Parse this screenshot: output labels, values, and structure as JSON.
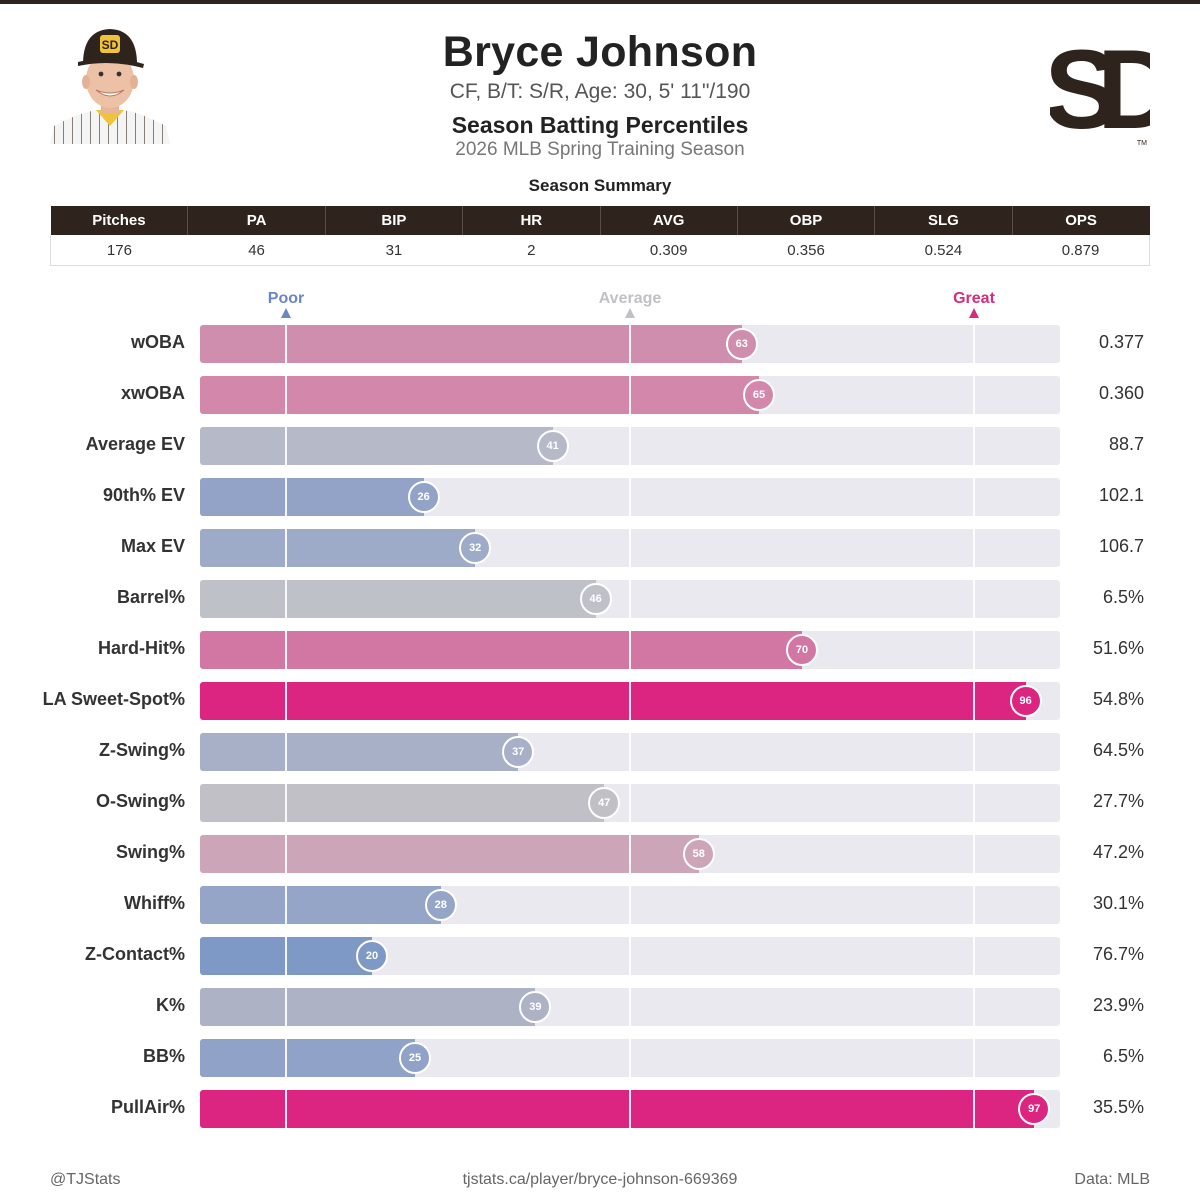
{
  "header": {
    "player_name": "Bryce Johnson",
    "bio": "CF, B/T: S/R, Age: 30, 5' 11\"/190",
    "plot_title": "Season Batting Percentiles",
    "season": "2026 MLB Spring Training Season",
    "team_logo_text": "SD"
  },
  "summary": {
    "title": "Season Summary",
    "columns": [
      "Pitches",
      "PA",
      "BIP",
      "HR",
      "AVG",
      "OBP",
      "SLG",
      "OPS"
    ],
    "values": [
      "176",
      "46",
      "31",
      "2",
      "0.309",
      "0.356",
      "0.524",
      "0.879"
    ]
  },
  "chart_data": {
    "type": "bar",
    "orientation": "horizontal",
    "title": "Season Batting Percentiles",
    "xlim": [
      0,
      100
    ],
    "scale_labels": [
      {
        "label": "Poor",
        "percentile": 10,
        "color": "#6b86c0"
      },
      {
        "label": "Average",
        "percentile": 50,
        "color": "#c0c0c6"
      },
      {
        "label": "Great",
        "percentile": 90,
        "color": "#d42c7e"
      }
    ],
    "categories": [
      "wOBA",
      "xwOBA",
      "Average EV",
      "90th% EV",
      "Max EV",
      "Barrel%",
      "Hard-Hit%",
      "LA Sweet-Spot%",
      "Z-Swing%",
      "O-Swing%",
      "Swing%",
      "Whiff%",
      "Z-Contact%",
      "K%",
      "BB%",
      "PullAir%"
    ],
    "percentiles": [
      63,
      65,
      41,
      26,
      32,
      46,
      70,
      96,
      37,
      47,
      58,
      28,
      20,
      39,
      25,
      97
    ],
    "stat_values": [
      "0.377",
      "0.360",
      "88.7",
      "102.1",
      "106.7",
      "6.5%",
      "51.6%",
      "54.8%",
      "64.5%",
      "27.7%",
      "47.2%",
      "30.1%",
      "76.7%",
      "23.9%",
      "6.5%",
      "35.5%"
    ],
    "colors": [
      "#cf8eae",
      "#d387ab",
      "#b6b9c8",
      "#92a3c7",
      "#9eabc8",
      "#bfc1c9",
      "#d277a4",
      "#dc2581",
      "#a7b0c6",
      "#c0c0c6",
      "#cda5b9",
      "#95a5c8",
      "#7f99c6",
      "#adb2c5",
      "#90a2c7",
      "#dc2581"
    ]
  },
  "footer": {
    "left": "@TJStats",
    "center": "tjstats.ca/player/bryce-johnson-669369",
    "right": "Data: MLB"
  }
}
